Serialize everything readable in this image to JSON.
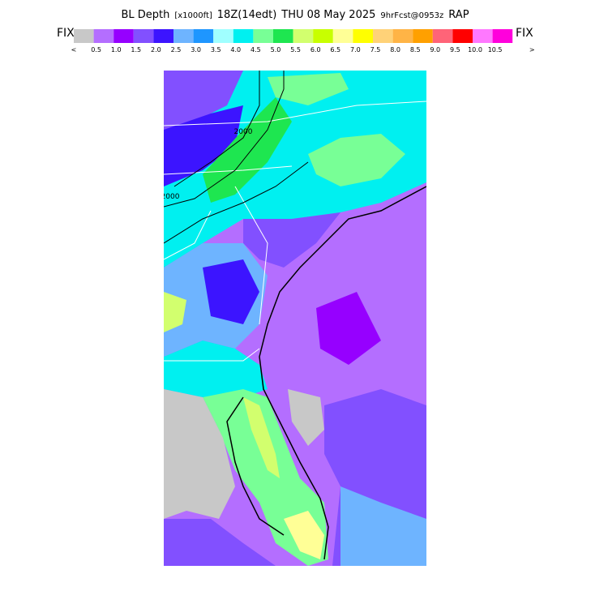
{
  "header": {
    "title_parts": [
      "BL Depth",
      "[x1000ft]",
      "18Z(14edt)",
      "THU 08 May 2025",
      "9hrFcst@0953z",
      "RAP"
    ],
    "fix_left": "FIX",
    "fix_right": "FIX"
  },
  "legend": {
    "labels": [
      "<",
      "0.5",
      "1.0",
      "1.5",
      "2.0",
      "2.5",
      "3.0",
      "3.5",
      "4.0",
      "4.5",
      "5.0",
      "5.5",
      "6.0",
      "6.5",
      "7.0",
      "7.5",
      "8.0",
      "8.5",
      "9.0",
      "9.5",
      "10.0",
      "10.5",
      ">"
    ],
    "colors": [
      "#c8c8c8",
      "#b46eff",
      "#9600ff",
      "#8250ff",
      "#3c14ff",
      "#6eb4ff",
      "#1e96ff",
      "#a0ffff",
      "#00f0f0",
      "#78ff96",
      "#1ee650",
      "#d2ff6e",
      "#c8ff00",
      "#ffff96",
      "#ffff00",
      "#ffd278",
      "#ffb446",
      "#ffa000",
      "#ff6478",
      "#ff0000",
      "#ff78ff",
      "#ff00dc"
    ]
  },
  "map": {
    "contour_labels": [
      "2000",
      "2000"
    ]
  }
}
